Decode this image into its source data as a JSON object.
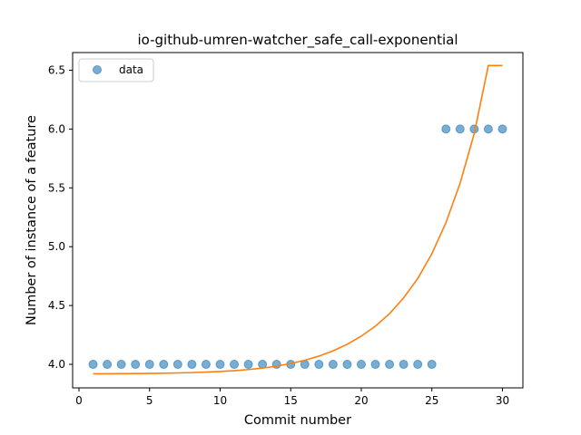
{
  "chart_data": {
    "type": "scatter",
    "title": "io-github-umren-watcher_safe_call-exponential",
    "xlabel": "Commit number",
    "ylabel": "Number of instance of a feature",
    "xlim": [
      -0.45,
      31.45
    ],
    "ylim": [
      3.8,
      6.65
    ],
    "xticks": [
      0,
      5,
      10,
      15,
      20,
      25,
      30
    ],
    "yticks": [
      4.0,
      4.5,
      5.0,
      5.5,
      6.0,
      6.5
    ],
    "grid": false,
    "legend_position": "top-left",
    "series": [
      {
        "name": "data",
        "kind": "scatter",
        "color": "#1f77b4",
        "x": [
          1,
          2,
          3,
          4,
          5,
          6,
          7,
          8,
          9,
          10,
          11,
          12,
          13,
          14,
          15,
          16,
          17,
          18,
          19,
          20,
          21,
          22,
          23,
          24,
          25,
          26,
          27,
          28,
          29,
          30
        ],
        "y": [
          4,
          4,
          4,
          4,
          4,
          4,
          4,
          4,
          4,
          4,
          4,
          4,
          4,
          4,
          4,
          4,
          4,
          4,
          4,
          4,
          4,
          4,
          4,
          4,
          4,
          6,
          6,
          6,
          6,
          6
        ]
      },
      {
        "kind": "line",
        "color": "#ff7f0e",
        "x": [
          1,
          2,
          3,
          4,
          5,
          6,
          7,
          8,
          9,
          10,
          11,
          12,
          13,
          14,
          15,
          16,
          17,
          18,
          19,
          20,
          21,
          22,
          23,
          24,
          25,
          26,
          27,
          28,
          29,
          30
        ],
        "y": [
          3.92,
          3.92,
          3.921,
          3.922,
          3.923,
          3.925,
          3.927,
          3.93,
          3.934,
          3.939,
          3.946,
          3.956,
          3.968,
          3.985,
          4.007,
          4.035,
          4.07,
          4.115,
          4.17,
          4.24,
          4.325,
          4.43,
          4.565,
          4.73,
          4.94,
          5.205,
          5.54,
          5.96,
          6.54,
          6.54
        ]
      }
    ]
  }
}
